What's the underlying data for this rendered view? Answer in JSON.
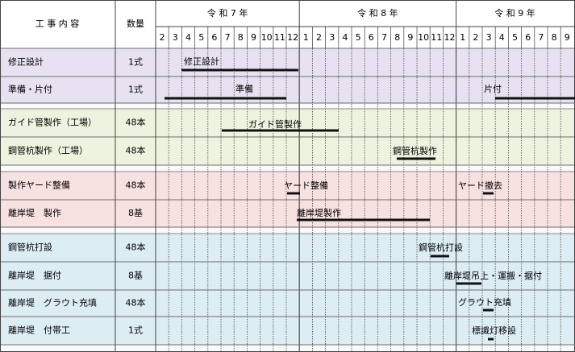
{
  "header": {
    "task": "工 事 内 容",
    "qty": "数量",
    "years": [
      "令 和 7 年",
      "令 和 8 年",
      "令 和 9 年"
    ],
    "months": [
      [
        2,
        3,
        4,
        5,
        6,
        7,
        8,
        9,
        10,
        11,
        12
      ],
      [
        1,
        2,
        3,
        4,
        5,
        6,
        7,
        8,
        9,
        10,
        11,
        12
      ],
      [
        1,
        2,
        3,
        4,
        5,
        6,
        7,
        8,
        9
      ]
    ]
  },
  "rows": [
    {
      "task": "修正設計",
      "qty": "1式",
      "bars": [
        "修正設計"
      ]
    },
    {
      "task": "準備・片付",
      "qty": "1式",
      "bars": [
        "準備",
        "片付"
      ]
    },
    {
      "task": "ガイド管製作（工場）",
      "qty": "48本",
      "bars": [
        "ガイド管製作"
      ]
    },
    {
      "task": "鋼管杭製作（工場）",
      "qty": "48本",
      "bars": [
        "鋼管杭製作"
      ]
    },
    {
      "task": "製作ヤード整備",
      "qty": "48本",
      "bars": [
        "ヤード整備",
        "ヤード撤去"
      ]
    },
    {
      "task": "離岸堤　製作",
      "qty": "8基",
      "bars": [
        "離岸堤製作"
      ]
    },
    {
      "task": "鋼管杭打設",
      "qty": "48本",
      "bars": [
        "鋼管杭打設"
      ]
    },
    {
      "task": "離岸堤　据付",
      "qty": "8基",
      "bars": [
        "離岸堤吊上・運搬・据付"
      ]
    },
    {
      "task": "離岸堤　グラウト充填",
      "qty": "48本",
      "bars": [
        "グラウト充填"
      ]
    },
    {
      "task": "離岸堤　付帯工",
      "qty": "1式",
      "bars": [
        "標識灯移設"
      ]
    }
  ]
}
